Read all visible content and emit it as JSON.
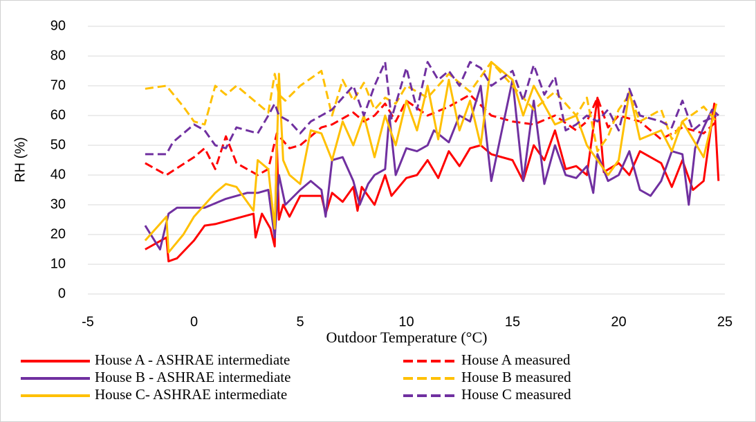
{
  "chart_data": {
    "type": "line",
    "xlabel": "Outdoor Temperature (°C)",
    "ylabel": "RH (%)",
    "xlim": [
      -5,
      25
    ],
    "xticks": [
      -5,
      0,
      5,
      10,
      15,
      20,
      25
    ],
    "ylim": [
      0,
      90
    ],
    "yticks": [
      0,
      10,
      20,
      30,
      40,
      50,
      60,
      70,
      80,
      90
    ],
    "grid": true,
    "series": [
      {
        "name": "House A - ASHRAE intermediate",
        "color": "#ff0000",
        "dash": false,
        "x": [
          -2.3,
          -1.3,
          -1.2,
          -0.8,
          0,
          0.5,
          1,
          2.8,
          2.9,
          3.2,
          3.6,
          3.8,
          3.9,
          4.0,
          4.2,
          4.5,
          5,
          6,
          6.2,
          6.5,
          7,
          7.5,
          7.7,
          7.9,
          8.5,
          9,
          9.3,
          10,
          10.5,
          11,
          11.5,
          12,
          12.5,
          13,
          13.5,
          14,
          15,
          15.5,
          16,
          16.5,
          17,
          17.5,
          18,
          18.5,
          19,
          19.3,
          20,
          20.5,
          21,
          22,
          22.5,
          23,
          23.5,
          24,
          24.5,
          24.7
        ],
        "values": [
          15,
          19,
          11,
          12,
          18,
          23,
          23.5,
          27,
          19,
          27,
          22,
          16,
          52,
          25,
          30,
          26,
          33,
          33,
          27,
          34,
          31,
          36,
          28,
          36,
          30,
          40,
          33,
          39,
          40,
          45,
          39,
          48,
          43,
          49,
          50,
          47,
          45,
          38,
          50,
          45,
          55,
          42,
          43,
          40,
          66,
          41,
          44,
          40,
          48,
          44,
          36,
          45,
          35,
          38,
          64,
          38
        ]
      },
      {
        "name": "House A measured",
        "color": "#ff0000",
        "dash": true,
        "x": [
          -2.3,
          -1.3,
          0,
          0.5,
          1,
          1.5,
          2,
          3,
          3.5,
          3.9,
          4.5,
          5,
          6,
          6.5,
          7,
          7.5,
          8,
          8.5,
          9,
          9.5,
          10,
          11,
          12,
          13,
          14,
          15,
          16,
          17,
          18,
          18.5,
          19,
          19.5,
          20,
          21,
          22,
          23,
          24,
          24.6
        ],
        "values": [
          44,
          40,
          46,
          49,
          42,
          53,
          44,
          40,
          42,
          54,
          49,
          50,
          56,
          57,
          59,
          61,
          58,
          60,
          64,
          58,
          65,
          60,
          63,
          67,
          60,
          58,
          57,
          60,
          55,
          58,
          66,
          56,
          60,
          58,
          52,
          56,
          54,
          58
        ]
      },
      {
        "name": "House B - ASHRAE intermediate",
        "color": "#7030a0",
        "dash": false,
        "x": [
          -2.3,
          -1.6,
          -1.2,
          -0.8,
          0.5,
          1.5,
          2.5,
          3,
          3.5,
          3.8,
          4,
          4.3,
          5,
          5.5,
          6,
          6.2,
          6.5,
          7,
          7.5,
          7.8,
          8.2,
          8.5,
          9,
          9.2,
          9.5,
          10,
          10.5,
          11,
          11.3,
          12,
          12.5,
          13,
          13.5,
          14,
          14.5,
          15,
          15.5,
          16,
          16.5,
          17,
          17.5,
          18,
          18.5,
          18.8,
          19,
          19.5,
          20,
          20.5,
          21,
          21.5,
          22,
          22.5,
          23,
          23.3,
          23.6,
          24,
          24.4,
          24.7
        ],
        "values": [
          23,
          15,
          27,
          29,
          29,
          32,
          34,
          34,
          35,
          19,
          40,
          30,
          35,
          38,
          35,
          26,
          45,
          46,
          38,
          30,
          37,
          40,
          42,
          60,
          40,
          49,
          48,
          50,
          55,
          51,
          60,
          58,
          70,
          38,
          55,
          72,
          38,
          65,
          37,
          50,
          40,
          39,
          43,
          34,
          47,
          38,
          40,
          48,
          35,
          33,
          38,
          48,
          47,
          30,
          49,
          56,
          62,
          60
        ]
      },
      {
        "name": "House B measured",
        "color": "#ffc000",
        "dash": true,
        "x": [
          -2.3,
          -1.3,
          -0.5,
          0,
          0.5,
          1,
          1.5,
          2,
          3,
          3.5,
          3.8,
          4,
          4.3,
          5,
          6,
          6.5,
          7,
          7.5,
          8,
          8.5,
          9,
          9.5,
          10,
          11,
          12,
          13,
          14,
          15,
          16,
          17,
          18,
          18.5,
          19,
          19.5,
          20,
          20.5,
          21,
          22,
          22.5,
          23,
          24,
          24.6
        ],
        "values": [
          69,
          70,
          63,
          58,
          57,
          70,
          67,
          70,
          64,
          61,
          74,
          67,
          65,
          70,
          75,
          60,
          72,
          65,
          71,
          62,
          66,
          64,
          70,
          66,
          74,
          68,
          78,
          70,
          62,
          68,
          60,
          66,
          48,
          53,
          62,
          67,
          58,
          62,
          52,
          58,
          63,
          58
        ]
      },
      {
        "name": "House C- ASHRAE intermediate",
        "color": "#ffc000",
        "dash": false,
        "x": [
          -2.3,
          -1.3,
          -1.2,
          -0.5,
          0,
          0.5,
          1,
          1.5,
          2,
          2.8,
          3,
          3.5,
          3.8,
          4,
          4.2,
          4.5,
          5,
          5.5,
          6,
          6.5,
          7,
          7.5,
          8,
          8.5,
          9,
          9.5,
          10,
          10.5,
          11,
          11.5,
          12,
          12.5,
          13,
          13.5,
          14,
          15,
          15.5,
          16,
          17,
          18,
          18.5,
          19,
          19.5,
          20,
          20.5,
          21,
          22,
          22.5,
          23,
          23.5,
          24,
          24.6
        ],
        "values": [
          18,
          26,
          14,
          20,
          26,
          30,
          34,
          37,
          36,
          28,
          45,
          42,
          22,
          74,
          45,
          40,
          37,
          55,
          54,
          45,
          58,
          50,
          60,
          46,
          60,
          50,
          65,
          55,
          70,
          52,
          72,
          55,
          65,
          50,
          78,
          72,
          60,
          70,
          57,
          60,
          50,
          45,
          40,
          45,
          68,
          52,
          55,
          48,
          58,
          52,
          46,
          64
        ]
      },
      {
        "name": "House C measured",
        "color": "#7030a0",
        "dash": true,
        "x": [
          -2.3,
          -1.3,
          -1,
          0,
          0.5,
          1,
          1.5,
          2,
          3,
          3.5,
          3.8,
          4,
          4.5,
          5,
          5.5,
          6,
          6.5,
          7,
          7.5,
          8,
          8.5,
          9,
          9.3,
          10,
          10.5,
          11,
          11.5,
          12,
          12.5,
          13,
          13.5,
          14,
          15,
          15.5,
          16,
          16.5,
          17,
          17.5,
          18,
          18.5,
          19,
          19.5,
          20,
          20.5,
          21,
          22,
          22.5,
          23,
          23.5,
          24,
          24.6
        ],
        "values": [
          47,
          47,
          51,
          57,
          55,
          50,
          49,
          56,
          54,
          60,
          64,
          60,
          58,
          54,
          58,
          60,
          62,
          66,
          70,
          60,
          70,
          78,
          59,
          76,
          62,
          78,
          72,
          75,
          70,
          78,
          76,
          70,
          75,
          65,
          77,
          67,
          73,
          55,
          57,
          60,
          58,
          62,
          55,
          69,
          60,
          58,
          56,
          65,
          55,
          58,
          60
        ]
      }
    ]
  }
}
